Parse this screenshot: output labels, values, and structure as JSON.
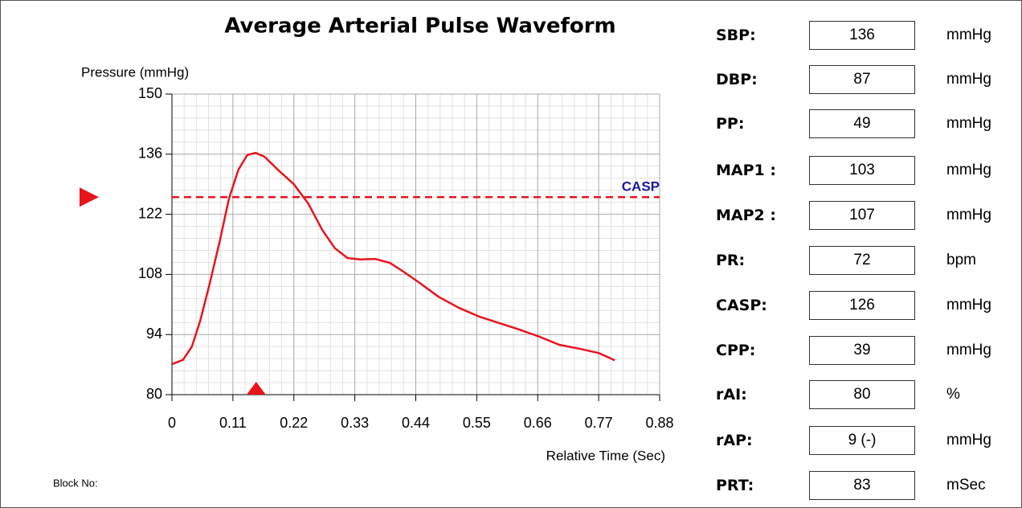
{
  "chart_data": {
    "type": "line",
    "title": "Average Arterial Pulse Waveform",
    "y_label": "Pressure (mmHg)",
    "x_label": "Relative Time (Sec)",
    "footer": "Block No:",
    "xlim": [
      0,
      0.88
    ],
    "xticks": [
      0,
      0.11,
      0.22,
      0.33,
      0.44,
      0.55,
      0.66,
      0.77,
      0.88
    ],
    "ylim": [
      80,
      150
    ],
    "yticks": [
      80,
      94,
      108,
      122,
      136,
      150
    ],
    "grid": true,
    "series": [
      {
        "name": "Pressure",
        "color": "#e8141c",
        "x": [
          0,
          0.02,
          0.036,
          0.051,
          0.068,
          0.086,
          0.103,
          0.12,
          0.136,
          0.151,
          0.167,
          0.191,
          0.22,
          0.246,
          0.271,
          0.294,
          0.317,
          0.34,
          0.367,
          0.393,
          0.416,
          0.445,
          0.481,
          0.518,
          0.554,
          0.59,
          0.626,
          0.663,
          0.699,
          0.735,
          0.77,
          0.799
        ],
        "values": [
          87.1,
          88.1,
          91.2,
          97.2,
          105.8,
          115.6,
          125.7,
          132.4,
          135.8,
          136.3,
          135.4,
          132.4,
          129.0,
          124.5,
          118.4,
          114.1,
          111.8,
          111.5,
          111.6,
          110.7,
          108.8,
          106.2,
          102.8,
          100.2,
          98.2,
          96.7,
          95.2,
          93.5,
          91.6,
          90.7,
          89.7,
          88.0
        ]
      }
    ],
    "reference_line": {
      "label": "CASP",
      "value": 126,
      "color": "#e8141c",
      "label_color": "#1a1aa0"
    },
    "peak_marker_x": 0.152
  },
  "parameters": [
    {
      "label": "SBP:",
      "value": "136",
      "unit": "mmHg"
    },
    {
      "label": "DBP:",
      "value": "87",
      "unit": "mmHg"
    },
    {
      "label": "PP:",
      "value": "49",
      "unit": "mmHg"
    },
    {
      "label": "MAP1 :",
      "value": "103",
      "unit": "mmHg"
    },
    {
      "label": "MAP2 :",
      "value": "107",
      "unit": "mmHg"
    },
    {
      "label": "PR:",
      "value": "72",
      "unit": "bpm"
    },
    {
      "label": "CASP:",
      "value": "126",
      "unit": "mmHg"
    },
    {
      "label": "CPP:",
      "value": "39",
      "unit": "mmHg"
    },
    {
      "label": "rAI:",
      "value": "80",
      "unit": "%"
    },
    {
      "label": "rAP:",
      "value": "9 (-)",
      "unit": "mmHg"
    },
    {
      "label": "PRT:",
      "value": "83",
      "unit": "mSec"
    }
  ]
}
